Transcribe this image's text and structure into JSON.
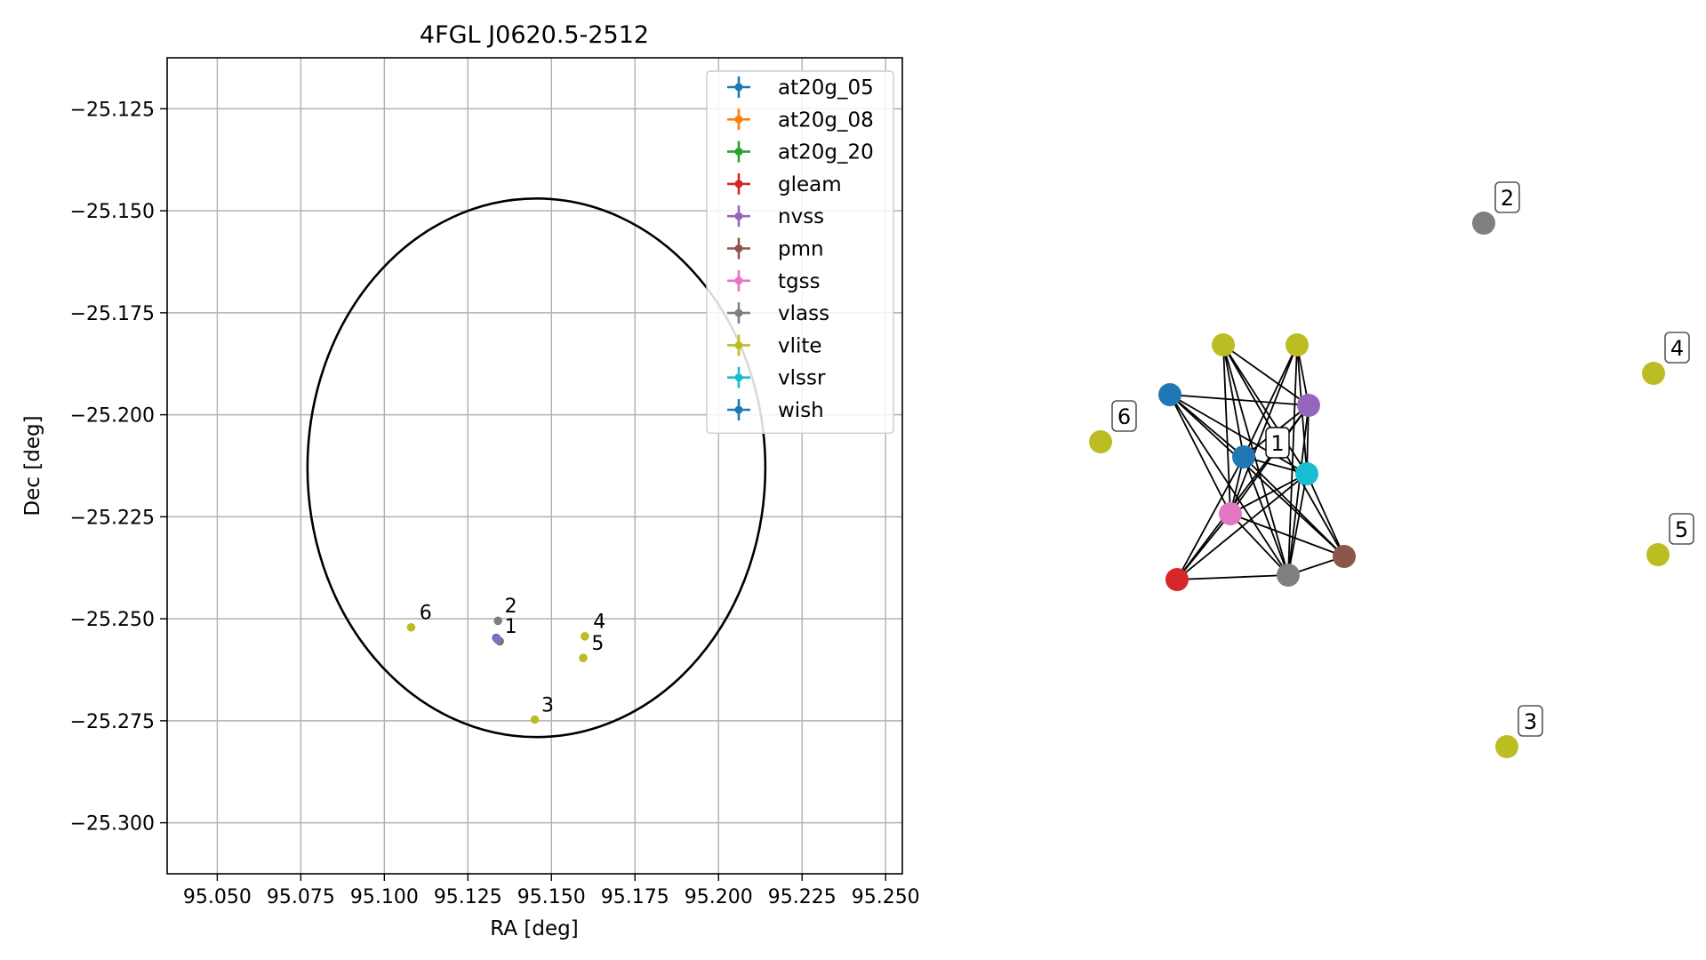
{
  "chart_data": [
    {
      "type": "scatter",
      "title": "4FGL J0620.5-2512",
      "xlabel": "RA [deg]",
      "ylabel": "Dec [deg]",
      "xlim": [
        95.035,
        95.255
      ],
      "ylim": [
        -25.3125,
        -25.1125
      ],
      "xticks": [
        95.05,
        95.075,
        95.1,
        95.125,
        95.15,
        95.175,
        95.2,
        95.225,
        95.25
      ],
      "xtick_labels": [
        "95.050",
        "95.075",
        "95.100",
        "95.125",
        "95.150",
        "95.175",
        "95.200",
        "95.225",
        "95.250"
      ],
      "yticks": [
        -25.125,
        -25.15,
        -25.175,
        -25.2,
        -25.225,
        -25.25,
        -25.275,
        -25.3
      ],
      "ytick_labels": [
        "−25.125",
        "−25.150",
        "−25.175",
        "−25.200",
        "−25.225",
        "−25.250",
        "−25.275",
        "−25.300"
      ],
      "grid": true,
      "legend_position": "top-right",
      "legend": [
        {
          "name": "at20g_05",
          "color": "#1f77b4"
        },
        {
          "name": "at20g_08",
          "color": "#ff7f0e"
        },
        {
          "name": "at20g_20",
          "color": "#2ca02c"
        },
        {
          "name": "gleam",
          "color": "#d62728"
        },
        {
          "name": "nvss",
          "color": "#9467bd"
        },
        {
          "name": "pmn",
          "color": "#8c564b"
        },
        {
          "name": "tgss",
          "color": "#e377c2"
        },
        {
          "name": "vlass",
          "color": "#7f7f7f"
        },
        {
          "name": "vlite",
          "color": "#bcbd22"
        },
        {
          "name": "vlssr",
          "color": "#17becf"
        },
        {
          "name": "wish",
          "color": "#1f77b4"
        }
      ],
      "ellipse": {
        "center": [
          95.1455,
          -25.213
        ],
        "semi_axis_ra": 0.0685,
        "semi_axis_dec": 0.066,
        "color": "#000000"
      },
      "points": [
        {
          "x": 95.1335,
          "y": -25.2547,
          "color": "#1f77b4"
        },
        {
          "x": 95.1345,
          "y": -25.2555,
          "color": "#8c564b"
        },
        {
          "x": 95.134,
          "y": -25.2552,
          "color": "#17becf"
        },
        {
          "x": 95.1338,
          "y": -25.255,
          "color": "#9467bd"
        },
        {
          "x": 95.134,
          "y": -25.2505,
          "color": "#7f7f7f"
        },
        {
          "x": 95.145,
          "y": -25.2747,
          "color": "#bcbd22"
        },
        {
          "x": 95.16,
          "y": -25.2543,
          "color": "#bcbd22"
        },
        {
          "x": 95.1595,
          "y": -25.2596,
          "color": "#bcbd22"
        },
        {
          "x": 95.108,
          "y": -25.2521,
          "color": "#bcbd22"
        }
      ],
      "labels": [
        {
          "text": "1",
          "x": 95.136,
          "y": -25.2535
        },
        {
          "text": "2",
          "x": 95.136,
          "y": -25.2485
        },
        {
          "text": "3",
          "x": 95.147,
          "y": -25.2727
        },
        {
          "text": "4",
          "x": 95.1625,
          "y": -25.2523
        },
        {
          "text": "5",
          "x": 95.162,
          "y": -25.2576
        },
        {
          "text": "6",
          "x": 95.1105,
          "y": -25.2501
        }
      ]
    },
    {
      "type": "network",
      "nodes": [
        {
          "id": "gleam",
          "color": "#d62728"
        },
        {
          "id": "nvss",
          "color": "#9467bd"
        },
        {
          "id": "pmn",
          "color": "#8c564b"
        },
        {
          "id": "tgss",
          "color": "#e377c2"
        },
        {
          "id": "vlass_a",
          "color": "#7f7f7f"
        },
        {
          "id": "vlite_a",
          "color": "#bcbd22"
        },
        {
          "id": "vlite_b",
          "color": "#bcbd22"
        },
        {
          "id": "vlssr",
          "color": "#17becf"
        },
        {
          "id": "wish",
          "color": "#1f77b4"
        },
        {
          "id": "at20g",
          "color": "#1f77b4"
        },
        {
          "id": "n2",
          "color": "#7f7f7f",
          "label": "2"
        },
        {
          "id": "n3",
          "color": "#bcbd22",
          "label": "3"
        },
        {
          "id": "n4",
          "color": "#bcbd22",
          "label": "4"
        },
        {
          "id": "n5",
          "color": "#bcbd22",
          "label": "5"
        },
        {
          "id": "n6",
          "color": "#bcbd22",
          "label": "6"
        }
      ],
      "cluster_label": "1"
    }
  ]
}
